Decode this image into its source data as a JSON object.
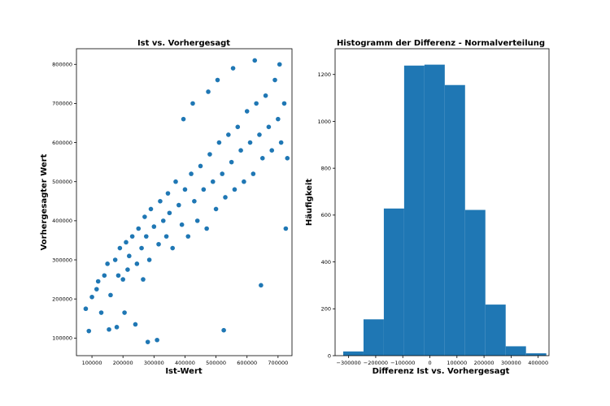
{
  "chart_data": [
    {
      "type": "scatter",
      "title": "Ist vs. Vorhergesagt",
      "xlabel": "Ist-Wert",
      "ylabel": "Vorhergesagter Wert",
      "xlim": [
        50000,
        745000
      ],
      "ylim": [
        55000,
        840000
      ],
      "xticks": [
        100000,
        200000,
        300000,
        400000,
        500000,
        600000,
        700000
      ],
      "xtick_labels": [
        "100000",
        "200000",
        "300000",
        "400000",
        "500000",
        "600000",
        "700000"
      ],
      "yticks": [
        100000,
        200000,
        300000,
        400000,
        500000,
        600000,
        700000,
        800000
      ],
      "ytick_labels": [
        "100000",
        "200000",
        "300000",
        "400000",
        "500000",
        "600000",
        "700000",
        "800000"
      ],
      "color": "#1f77b4",
      "grid": false,
      "points": [
        [
          80000,
          175000
        ],
        [
          90000,
          118000
        ],
        [
          100000,
          205000
        ],
        [
          115000,
          225000
        ],
        [
          120000,
          245000
        ],
        [
          130000,
          165000
        ],
        [
          140000,
          260000
        ],
        [
          150000,
          290000
        ],
        [
          155000,
          122000
        ],
        [
          160000,
          210000
        ],
        [
          175000,
          300000
        ],
        [
          180000,
          128000
        ],
        [
          185000,
          260000
        ],
        [
          190000,
          330000
        ],
        [
          200000,
          250000
        ],
        [
          205000,
          165000
        ],
        [
          210000,
          345000
        ],
        [
          215000,
          275000
        ],
        [
          220000,
          310000
        ],
        [
          230000,
          360000
        ],
        [
          240000,
          135000
        ],
        [
          245000,
          290000
        ],
        [
          250000,
          380000
        ],
        [
          260000,
          330000
        ],
        [
          265000,
          250000
        ],
        [
          270000,
          410000
        ],
        [
          275000,
          360000
        ],
        [
          280000,
          90000
        ],
        [
          285000,
          300000
        ],
        [
          290000,
          430000
        ],
        [
          300000,
          385000
        ],
        [
          310000,
          95000
        ],
        [
          315000,
          340000
        ],
        [
          320000,
          450000
        ],
        [
          330000,
          400000
        ],
        [
          340000,
          360000
        ],
        [
          345000,
          470000
        ],
        [
          350000,
          420000
        ],
        [
          360000,
          330000
        ],
        [
          370000,
          500000
        ],
        [
          380000,
          440000
        ],
        [
          390000,
          390000
        ],
        [
          395000,
          660000
        ],
        [
          400000,
          480000
        ],
        [
          410000,
          360000
        ],
        [
          420000,
          520000
        ],
        [
          425000,
          700000
        ],
        [
          430000,
          450000
        ],
        [
          440000,
          400000
        ],
        [
          450000,
          540000
        ],
        [
          460000,
          480000
        ],
        [
          470000,
          380000
        ],
        [
          475000,
          730000
        ],
        [
          480000,
          570000
        ],
        [
          490000,
          500000
        ],
        [
          500000,
          430000
        ],
        [
          505000,
          760000
        ],
        [
          510000,
          600000
        ],
        [
          520000,
          520000
        ],
        [
          525000,
          120000
        ],
        [
          530000,
          460000
        ],
        [
          540000,
          620000
        ],
        [
          550000,
          550000
        ],
        [
          555000,
          790000
        ],
        [
          560000,
          480000
        ],
        [
          570000,
          640000
        ],
        [
          580000,
          580000
        ],
        [
          590000,
          500000
        ],
        [
          600000,
          680000
        ],
        [
          610000,
          600000
        ],
        [
          620000,
          520000
        ],
        [
          625000,
          810000
        ],
        [
          630000,
          700000
        ],
        [
          640000,
          620000
        ],
        [
          645000,
          235000
        ],
        [
          650000,
          560000
        ],
        [
          660000,
          720000
        ],
        [
          670000,
          640000
        ],
        [
          680000,
          580000
        ],
        [
          690000,
          760000
        ],
        [
          700000,
          660000
        ],
        [
          705000,
          800000
        ],
        [
          710000,
          600000
        ],
        [
          720000,
          700000
        ],
        [
          725000,
          380000
        ],
        [
          730000,
          560000
        ]
      ]
    },
    {
      "type": "bar",
      "title": "Histogramm der Differenz - Normalverteilung",
      "xlabel": "Differenz Ist vs. Vorhergesagt",
      "ylabel": "Häufigkeit",
      "xlim": [
        -350000,
        440000
      ],
      "ylim": [
        0,
        1310
      ],
      "xticks": [
        -300000,
        -200000,
        -100000,
        0,
        100000,
        200000,
        300000,
        400000
      ],
      "xtick_labels": [
        "−300000",
        "−200000",
        "−100000",
        "0",
        "100000",
        "200000",
        "300000",
        "400000"
      ],
      "yticks": [
        0,
        200,
        400,
        600,
        800,
        1000,
        1200
      ],
      "ytick_labels": [
        "0",
        "200",
        "400",
        "600",
        "800",
        "1000",
        "1200"
      ],
      "color": "#1f77b4",
      "grid": false,
      "bin_edges": [
        -320000,
        -245000,
        -170000,
        -95000,
        -20000,
        55000,
        130000,
        205000,
        280000,
        355000,
        430000
      ],
      "values": [
        18,
        155,
        628,
        1238,
        1242,
        1155,
        622,
        218,
        40,
        10
      ]
    }
  ]
}
